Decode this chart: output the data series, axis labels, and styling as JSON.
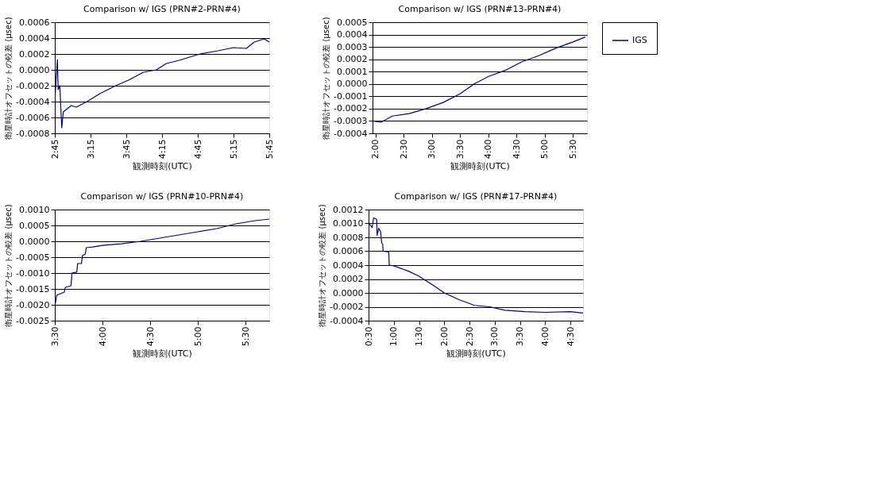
{
  "chart_data": [
    {
      "type": "line",
      "title": "Comparison w/ IGS (PRN#2-PRN#4)",
      "xlabel": "観測時刻(UTC)",
      "ylabel": "衛星時計オフセットの較差 (µsec)",
      "x": [
        2.75,
        2.786,
        2.797,
        2.82,
        2.847,
        2.869,
        2.98,
        3.05,
        3.2,
        3.38,
        3.6,
        3.78,
        3.99,
        4.17,
        4.31,
        4.49,
        4.78,
        5.03,
        5.25,
        5.43,
        5.54,
        5.68,
        5.75
      ],
      "series": [
        {
          "name": "IGS",
          "color": "#000080",
          "values": [
            -0.00039,
            0.00013,
            -0.00025,
            -0.0002,
            -0.00073,
            -0.00053,
            -0.00045,
            -0.00047,
            -0.0004,
            -0.0003,
            -0.0002,
            -0.00013,
            -3e-05,
            0.0,
            8e-05,
            0.00012,
            0.0002,
            0.00024,
            0.00028,
            0.00027,
            0.00035,
            0.00039,
            0.00035
          ]
        }
      ],
      "xlim": [
        2.75,
        5.75
      ],
      "xticks": [
        {
          "value": 2.75,
          "label": "2:45"
        },
        {
          "value": 3.25,
          "label": "3:15"
        },
        {
          "value": 3.75,
          "label": "3:45"
        },
        {
          "value": 4.25,
          "label": "4:15"
        },
        {
          "value": 4.75,
          "label": "4:45"
        },
        {
          "value": 5.25,
          "label": "5:15"
        },
        {
          "value": 5.75,
          "label": "5:45"
        }
      ],
      "ylim": [
        -0.0008,
        0.0006
      ],
      "yticks": [
        {
          "value": -0.0008,
          "label": "-0.0008"
        },
        {
          "value": -0.0006,
          "label": "-0.0006"
        },
        {
          "value": -0.0004,
          "label": "-0.0004"
        },
        {
          "value": -0.0002,
          "label": "-0.0002"
        },
        {
          "value": 0,
          "label": "0.0000"
        },
        {
          "value": 0.0002,
          "label": "0.0002"
        },
        {
          "value": 0.0004,
          "label": "0.0004"
        },
        {
          "value": 0.0006,
          "label": "0.0006"
        }
      ],
      "grid": "y",
      "legend": "right",
      "marker": "none",
      "line_style": "solid"
    },
    {
      "type": "line",
      "title": "Comparison w/ IGS (PRN#13-PRN#4)",
      "xlabel": "観測時刻(UTC)",
      "ylabel": "衛星時計オフセットの較差 (µsec)",
      "x": [
        1.95,
        2.1,
        2.3,
        2.6,
        2.9,
        3.2,
        3.5,
        3.75,
        4.0,
        4.3,
        4.6,
        4.9,
        5.2,
        5.5,
        5.72
      ],
      "series": [
        {
          "name": "IGS",
          "color": "#000080",
          "values": [
            -0.0003,
            -0.00031,
            -0.00026,
            -0.00024,
            -0.0002,
            -0.00015,
            -8e-05,
            0.0,
            6e-05,
            0.00011,
            0.00018,
            0.00023,
            0.00029,
            0.00034,
            0.00038
          ]
        }
      ],
      "xlim": [
        1.95,
        5.75
      ],
      "xticks": [
        {
          "value": 2,
          "label": "2:00"
        },
        {
          "value": 2.5,
          "label": "2:30"
        },
        {
          "value": 3,
          "label": "3:00"
        },
        {
          "value": 3.5,
          "label": "3:30"
        },
        {
          "value": 4,
          "label": "4:00"
        },
        {
          "value": 4.5,
          "label": "4:30"
        },
        {
          "value": 5,
          "label": "5:00"
        },
        {
          "value": 5.5,
          "label": "5:30"
        }
      ],
      "ylim": [
        -0.0004,
        0.0005
      ],
      "yticks": [
        {
          "value": -0.0004,
          "label": "-0.0004"
        },
        {
          "value": -0.0003,
          "label": "-0.0003"
        },
        {
          "value": -0.0002,
          "label": "-0.0002"
        },
        {
          "value": -0.0001,
          "label": "-0.0001"
        },
        {
          "value": 0,
          "label": "0.0000"
        },
        {
          "value": 0.0001,
          "label": "0.0001"
        },
        {
          "value": 0.0002,
          "label": "0.0002"
        },
        {
          "value": 0.0003,
          "label": "0.0003"
        },
        {
          "value": 0.0004,
          "label": "0.0004"
        },
        {
          "value": 0.0005,
          "label": "0.0005"
        }
      ],
      "grid": "y",
      "legend": "right",
      "marker": "none",
      "line_style": "solid"
    },
    {
      "type": "line",
      "title": "Comparison w/ IGS (PRN#10-PRN#4)",
      "xlabel": "観測時刻(UTC)",
      "ylabel": "衛星時計オフセットの較差 (µsec)",
      "x": [
        3.5,
        3.52,
        3.6,
        3.61,
        3.67,
        3.68,
        3.73,
        3.74,
        3.78,
        3.79,
        3.82,
        3.83,
        3.9,
        4.0,
        4.2,
        4.4,
        4.6,
        4.8,
        5.0,
        5.2,
        5.4,
        5.6,
        5.75
      ],
      "series": [
        {
          "name": "IGS",
          "color": "#000080",
          "values": [
            -0.00205,
            -0.0017,
            -0.0016,
            -0.00145,
            -0.0014,
            -0.001,
            -0.00097,
            -0.0007,
            -0.0007,
            -0.00045,
            -0.0004,
            -0.0002,
            -0.00018,
            -0.00013,
            -8e-05,
            0.0,
            0.0001,
            0.0002,
            0.0003,
            0.0004,
            0.00055,
            0.00065,
            0.0007
          ]
        }
      ],
      "xlim": [
        3.5,
        5.75
      ],
      "xticks": [
        {
          "value": 3.5,
          "label": "3:30"
        },
        {
          "value": 4,
          "label": "4:00"
        },
        {
          "value": 4.5,
          "label": "4:30"
        },
        {
          "value": 5,
          "label": "5:00"
        },
        {
          "value": 5.5,
          "label": "5:30"
        }
      ],
      "ylim": [
        -0.0025,
        0.001
      ],
      "yticks": [
        {
          "value": -0.0025,
          "label": "-0.0025"
        },
        {
          "value": -0.002,
          "label": "-0.0020"
        },
        {
          "value": -0.0015,
          "label": "-0.0015"
        },
        {
          "value": -0.001,
          "label": "-0.0010"
        },
        {
          "value": -0.0005,
          "label": "-0.0005"
        },
        {
          "value": 0,
          "label": "0.0000"
        },
        {
          "value": 0.0005,
          "label": "0.0005"
        },
        {
          "value": 0.001,
          "label": "0.0010"
        }
      ],
      "grid": "y",
      "legend": "right",
      "marker": "none",
      "line_style": "solid"
    },
    {
      "type": "line",
      "title": "Comparison w/ IGS (PRN#17-PRN#4)",
      "xlabel": "観測時刻(UTC)",
      "ylabel": "衛星時計オフセットの較差 (µsec)",
      "x": [
        0.5,
        0.51,
        0.57,
        0.6,
        0.66,
        0.67,
        0.7,
        0.74,
        0.76,
        0.78,
        0.79,
        0.9,
        0.91,
        1.0,
        1.3,
        1.5,
        1.8,
        2.0,
        2.3,
        2.6,
        2.9,
        3.2,
        3.6,
        4.0,
        4.5,
        4.75
      ],
      "series": [
        {
          "name": "IGS",
          "color": "#000080",
          "values": [
            0.00083,
            0.001,
            0.00094,
            0.00108,
            0.00106,
            0.00083,
            0.00093,
            0.00088,
            0.00072,
            0.0007,
            0.0006,
            0.00059,
            0.0004,
            0.00039,
            0.00031,
            0.00024,
            0.0001,
            0.0,
            -0.0001,
            -0.00018,
            -0.0002,
            -0.00025,
            -0.00027,
            -0.00028,
            -0.00027,
            -0.00029
          ]
        }
      ],
      "xlim": [
        0.5,
        4.75
      ],
      "xticks": [
        {
          "value": 0.5,
          "label": "0:30"
        },
        {
          "value": 1,
          "label": "1:00"
        },
        {
          "value": 1.5,
          "label": "1:30"
        },
        {
          "value": 2,
          "label": "2:00"
        },
        {
          "value": 2.5,
          "label": "2:30"
        },
        {
          "value": 3,
          "label": "3:00"
        },
        {
          "value": 3.5,
          "label": "3:30"
        },
        {
          "value": 4,
          "label": "4:00"
        },
        {
          "value": 4.5,
          "label": "4:30"
        }
      ],
      "ylim": [
        -0.0004,
        0.0012
      ],
      "yticks": [
        {
          "value": -0.0004,
          "label": "-0.0004"
        },
        {
          "value": -0.0002,
          "label": "-0.0002"
        },
        {
          "value": 0,
          "label": "0.0000"
        },
        {
          "value": 0.0002,
          "label": "0.0002"
        },
        {
          "value": 0.0004,
          "label": "0.0004"
        },
        {
          "value": 0.0006,
          "label": "0.0006"
        },
        {
          "value": 0.0008,
          "label": "0.0008"
        },
        {
          "value": 0.001,
          "label": "0.0010"
        },
        {
          "value": 0.0012,
          "label": "0.0012"
        }
      ],
      "grid": "y",
      "legend": "right",
      "marker": "none",
      "line_style": "solid"
    }
  ]
}
